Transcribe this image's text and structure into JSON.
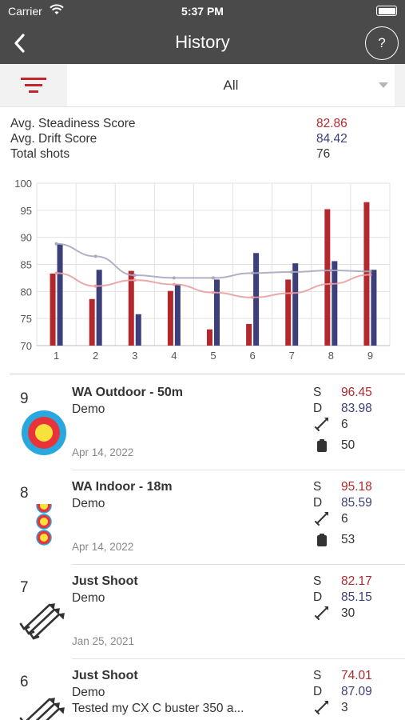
{
  "status_bar": {
    "carrier": "Carrier",
    "time": "5:37 PM"
  },
  "nav": {
    "title": "History",
    "help_label": "?"
  },
  "filter": {
    "selected": "All"
  },
  "summary": {
    "steadiness_label": "Avg. Steadiness Score",
    "steadiness_value": "82.86",
    "drift_label": "Avg. Drift Score",
    "drift_value": "84.42",
    "shots_label": "Total shots",
    "shots_value": "76"
  },
  "chart_data": {
    "type": "bar",
    "categories": [
      "1",
      "2",
      "3",
      "4",
      "5",
      "6",
      "7",
      "8",
      "9"
    ],
    "ylim": [
      70,
      100
    ],
    "yticks": [
      70,
      75,
      80,
      85,
      90,
      95,
      100
    ],
    "grid": true,
    "series": [
      {
        "color": "#b3282d",
        "values": [
          83.3,
          78.6,
          83.8,
          80.1,
          73.0,
          74.0,
          82.2,
          95.2,
          96.5
        ]
      },
      {
        "color": "#3d3f7a",
        "values": [
          88.8,
          84.0,
          75.8,
          81.3,
          82.2,
          87.1,
          85.2,
          85.6,
          84.0
        ]
      }
    ],
    "trend_lines": [
      {
        "color": "#e8a0a0",
        "values": [
          83.4,
          81.0,
          82.1,
          81.3,
          79.8,
          78.9,
          79.7,
          81.4,
          83.1
        ]
      },
      {
        "color": "#a8a8c0",
        "values": [
          88.8,
          86.5,
          83.0,
          82.5,
          82.5,
          83.4,
          83.6,
          83.9,
          83.7
        ]
      }
    ]
  },
  "sessions": [
    {
      "index": "9",
      "title": "WA Outdoor - 50m",
      "bow": "Demo",
      "note": "",
      "date": "Apr 14, 2022",
      "s_label": "S",
      "s_value": "96.45",
      "d_label": "D",
      "d_value": "83.98",
      "arrows": "6",
      "rounds": "50",
      "icon": "target-face-icon"
    },
    {
      "index": "8",
      "title": "WA Indoor - 18m",
      "bow": "Demo",
      "note": "",
      "date": "Apr 14, 2022",
      "s_label": "S",
      "s_value": "95.18",
      "d_label": "D",
      "d_value": "85.59",
      "arrows": "6",
      "rounds": "53",
      "icon": "triple-spot-icon"
    },
    {
      "index": "7",
      "title": "Just Shoot",
      "bow": "Demo",
      "note": "",
      "date": "Jan 25, 2021",
      "s_label": "S",
      "s_value": "82.17",
      "d_label": "D",
      "d_value": "85.15",
      "arrows": "30",
      "rounds": "",
      "icon": "arrows-icon"
    },
    {
      "index": "6",
      "title": "Just Shoot",
      "bow": "Demo",
      "note": "Tested my CX C buster 350 a...",
      "date": "",
      "s_label": "S",
      "s_value": "74.01",
      "d_label": "D",
      "d_value": "87.09",
      "arrows": "3",
      "rounds": "",
      "icon": "arrows-icon"
    }
  ]
}
